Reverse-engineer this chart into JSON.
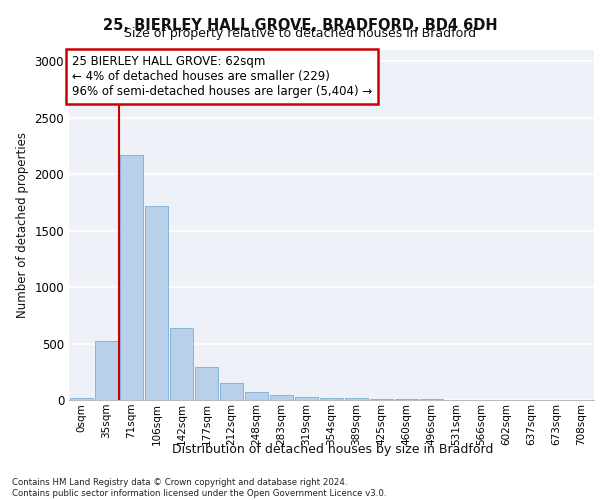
{
  "title1": "25, BIERLEY HALL GROVE, BRADFORD, BD4 6DH",
  "title2": "Size of property relative to detached houses in Bradford",
  "xlabel": "Distribution of detached houses by size in Bradford",
  "ylabel": "Number of detached properties",
  "bin_labels": [
    "0sqm",
    "35sqm",
    "71sqm",
    "106sqm",
    "142sqm",
    "177sqm",
    "212sqm",
    "248sqm",
    "283sqm",
    "319sqm",
    "354sqm",
    "389sqm",
    "425sqm",
    "460sqm",
    "496sqm",
    "531sqm",
    "566sqm",
    "602sqm",
    "637sqm",
    "673sqm",
    "708sqm"
  ],
  "bar_values": [
    20,
    520,
    2170,
    1720,
    640,
    295,
    155,
    75,
    45,
    30,
    20,
    15,
    10,
    5,
    5,
    3,
    2,
    2,
    1,
    1,
    1
  ],
  "bar_color": "#b8d0ea",
  "bar_edge_color": "#7aadd4",
  "vline_x": 1.5,
  "vline_color": "#cc0000",
  "annotation_text": "25 BIERLEY HALL GROVE: 62sqm\n← 4% of detached houses are smaller (229)\n96% of semi-detached houses are larger (5,404) →",
  "annotation_box_color": "#ffffff",
  "annotation_box_edge": "#cc0000",
  "ylim": [
    0,
    3100
  ],
  "yticks": [
    0,
    500,
    1000,
    1500,
    2000,
    2500,
    3000
  ],
  "footer_text": "Contains HM Land Registry data © Crown copyright and database right 2024.\nContains public sector information licensed under the Open Government Licence v3.0.",
  "bg_color": "#eef2f8"
}
